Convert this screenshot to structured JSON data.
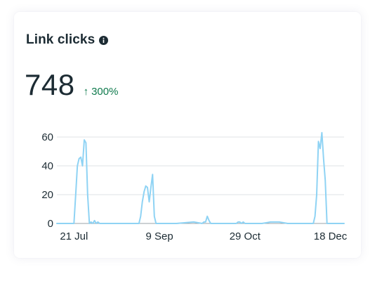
{
  "card": {
    "title": "Link clicks",
    "value": "748",
    "change": "300%",
    "change_direction": "up",
    "change_color": "#0f7a4d"
  },
  "icons": {
    "info": "info-icon",
    "change": "arrow-up-icon"
  },
  "chart_data": {
    "type": "area",
    "title": "",
    "xlabel": "",
    "ylabel": "",
    "ylim": [
      0,
      60
    ],
    "yticks": [
      0,
      20,
      40,
      60
    ],
    "grid": true,
    "line_color": "#8fd3f4",
    "xtick_labels": [
      {
        "day": 0,
        "label": "21 Jul"
      },
      {
        "day": 50,
        "label": "9 Sep"
      },
      {
        "day": 100,
        "label": "29 Oct"
      },
      {
        "day": 150,
        "label": "18 Dec"
      }
    ],
    "xlim": [
      -10,
      158
    ],
    "x": [
      -10,
      0,
      1,
      2,
      3,
      4,
      5,
      6,
      7,
      8,
      9,
      10,
      11,
      12,
      13,
      14,
      15,
      20,
      25,
      30,
      34,
      35,
      36,
      37,
      38,
      39,
      40,
      41,
      42,
      43,
      44,
      45,
      46,
      47,
      48,
      49,
      50,
      60,
      70,
      75,
      76,
      77,
      78,
      79,
      80,
      85,
      90,
      95,
      96,
      97,
      98,
      99,
      100,
      105,
      110,
      115,
      120,
      125,
      130,
      135,
      140,
      141,
      142,
      143,
      144,
      145,
      146,
      147,
      148,
      149,
      150,
      158
    ],
    "values": [
      0,
      0,
      20,
      40,
      45,
      46,
      40,
      58,
      56,
      20,
      0,
      1,
      0,
      2,
      0,
      1,
      0,
      0,
      0,
      0,
      0,
      0,
      0,
      0,
      0,
      5,
      15,
      22,
      26,
      25,
      15,
      25,
      34,
      5,
      0,
      0,
      0,
      0,
      1,
      0,
      1,
      1,
      5,
      2,
      0,
      0,
      0,
      0,
      1,
      1,
      0,
      1,
      0,
      0,
      0,
      1,
      1,
      0,
      0,
      0,
      0,
      5,
      20,
      57,
      52,
      63,
      45,
      30,
      0,
      0,
      0,
      0
    ]
  }
}
